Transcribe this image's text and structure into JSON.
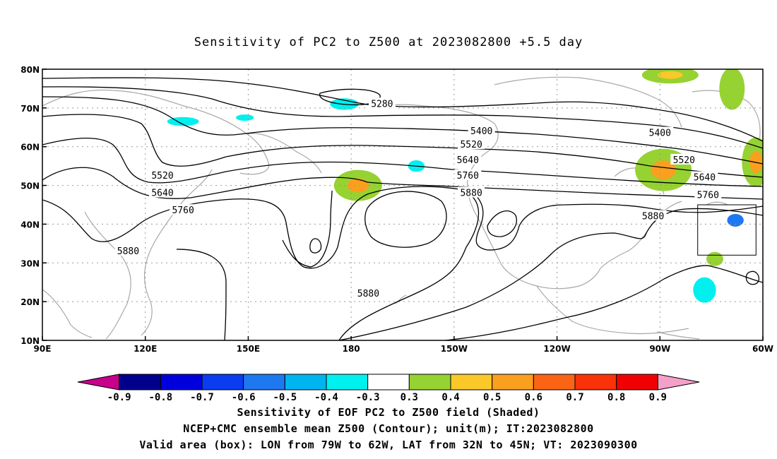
{
  "chart_data": {
    "type": "contour_map",
    "title": "Sensitivity of PC2 to Z500 at 2023082800 +5.5 day",
    "x_ticks": [
      "90E",
      "120E",
      "150E",
      "180",
      "150W",
      "120W",
      "90W",
      "60W"
    ],
    "y_ticks": [
      "10N",
      "20N",
      "30N",
      "40N",
      "50N",
      "60N",
      "70N",
      "80N"
    ],
    "xlim": [
      90,
      300
    ],
    "ylim": [
      10,
      80
    ],
    "grid": true,
    "contour_levels": [
      {
        "label": "5280",
        "lon": 189,
        "lat": 71
      },
      {
        "label": "5400",
        "lon": 218,
        "lat": 64
      },
      {
        "label": "5400",
        "lon": 270,
        "lat": 63.5
      },
      {
        "label": "5520",
        "lon": 125,
        "lat": 52.5
      },
      {
        "label": "5520",
        "lon": 215,
        "lat": 60.5
      },
      {
        "label": "5520",
        "lon": 277,
        "lat": 56.5
      },
      {
        "label": "5640",
        "lon": 125,
        "lat": 48
      },
      {
        "label": "5640",
        "lon": 214,
        "lat": 56.5
      },
      {
        "label": "5640",
        "lon": 283,
        "lat": 52
      },
      {
        "label": "5760",
        "lon": 131,
        "lat": 43.5
      },
      {
        "label": "5760",
        "lon": 214,
        "lat": 52.5
      },
      {
        "label": "5760",
        "lon": 284,
        "lat": 47.5
      },
      {
        "label": "5880",
        "lon": 115,
        "lat": 33
      },
      {
        "label": "5880",
        "lon": 185,
        "lat": 22
      },
      {
        "label": "5880",
        "lon": 215,
        "lat": 48
      },
      {
        "label": "5880",
        "lon": 268,
        "lat": 42
      }
    ],
    "shaded_regions": [
      {
        "lon": 178,
        "lat": 71,
        "value": -0.4
      },
      {
        "lon": 131,
        "lat": 66.5,
        "value": -0.4
      },
      {
        "lon": 149,
        "lat": 67.5,
        "value": -0.4
      },
      {
        "lon": 199,
        "lat": 55,
        "value": -0.4
      },
      {
        "lon": 292,
        "lat": 41,
        "value": -0.6
      },
      {
        "lon": 283,
        "lat": 23,
        "value": -0.4
      },
      {
        "lon": 182,
        "lat": 50,
        "value": 0.5
      },
      {
        "lon": 271,
        "lat": 54,
        "value": 0.5
      },
      {
        "lon": 298,
        "lat": 56,
        "value": 0.5
      },
      {
        "lon": 291,
        "lat": 75,
        "value": 0.3
      },
      {
        "lon": 273,
        "lat": 78.5,
        "value": 0.4
      },
      {
        "lon": 286,
        "lat": 31,
        "value": 0.3
      }
    ],
    "valid_area_box": {
      "lon": [
        281,
        298
      ],
      "lat": [
        32,
        45
      ]
    },
    "colorbar": {
      "tick_labels": [
        "-0.9",
        "-0.8",
        "-0.7",
        "-0.6",
        "-0.5",
        "-0.4",
        "-0.3",
        "0.3",
        "0.4",
        "0.5",
        "0.6",
        "0.7",
        "0.8",
        "0.9"
      ],
      "colors": [
        "#c8008c",
        "#00008c",
        "#0000dc",
        "#0a3cf0",
        "#1e78f0",
        "#00b4f0",
        "#00f0f0",
        "#ffffff",
        "#96d232",
        "#fac828",
        "#faa01e",
        "#fa6414",
        "#fa320a",
        "#f00000",
        "#f5a0c8"
      ]
    }
  },
  "captions": {
    "line1": "Sensitivity of EOF PC2 to Z500 field (Shaded)",
    "line2": "NCEP+CMC ensemble mean Z500 (Contour); unit(m); IT:2023082800",
    "line3": "Valid area (box): LON from 79W to 62W, LAT from 32N to 45N; VT: 2023090300"
  }
}
